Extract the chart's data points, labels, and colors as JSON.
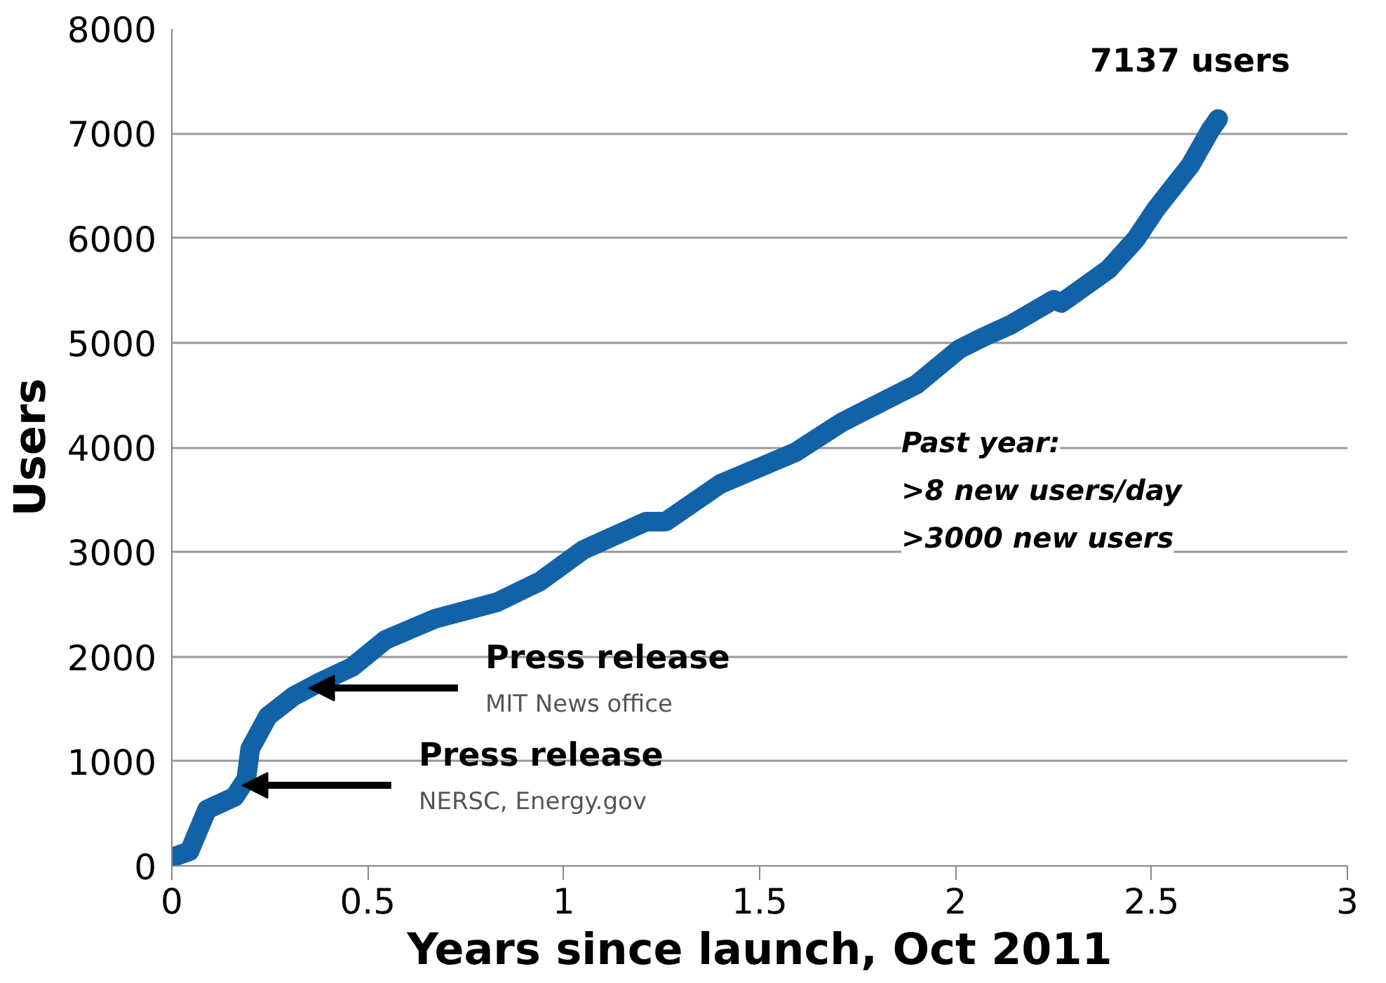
{
  "chart_data": {
    "type": "line",
    "xlabel": "Years since launch, Oct 2011",
    "ylabel": "Users",
    "xlim": [
      0,
      3
    ],
    "xticks": [
      0,
      0.5,
      1,
      1.5,
      2,
      2.5,
      3
    ],
    "ylim": [
      0,
      8000
    ],
    "yticks": [
      0,
      1000,
      2000,
      3000,
      4000,
      5000,
      6000,
      7000,
      8000
    ],
    "grid": "y",
    "line_style": "solid",
    "series": [
      {
        "color": "#1262a8",
        "x": [
          0,
          0.045,
          0.09,
          0.16,
          0.19,
          0.2,
          0.245,
          0.31,
          0.38,
          0.46,
          0.545,
          0.67,
          0.83,
          0.94,
          1.05,
          1.21,
          1.26,
          1.4,
          1.59,
          1.71,
          1.9,
          2.01,
          2.075,
          2.14,
          2.25,
          2.27,
          2.39,
          2.46,
          2.51,
          2.6,
          2.65,
          2.67
        ],
        "values": [
          80,
          140,
          540,
          660,
          830,
          1120,
          1430,
          1620,
          1760,
          1900,
          2160,
          2360,
          2520,
          2720,
          3020,
          3290,
          3290,
          3650,
          3950,
          4240,
          4600,
          4940,
          5060,
          5170,
          5410,
          5380,
          5700,
          5990,
          6270,
          6700,
          7030,
          7137
        ]
      }
    ],
    "annotations": [
      {
        "text": "7137 users",
        "x": 2.67,
        "y": 7137
      },
      {
        "text": "Press release\nMIT News office",
        "x": 0.35,
        "y": 1700
      },
      {
        "text": "Press release\nNERSC, Energy.gov",
        "x": 0.18,
        "y": 770
      },
      "Past year:\n>8 new users/day\n>3000 new users"
    ]
  }
}
